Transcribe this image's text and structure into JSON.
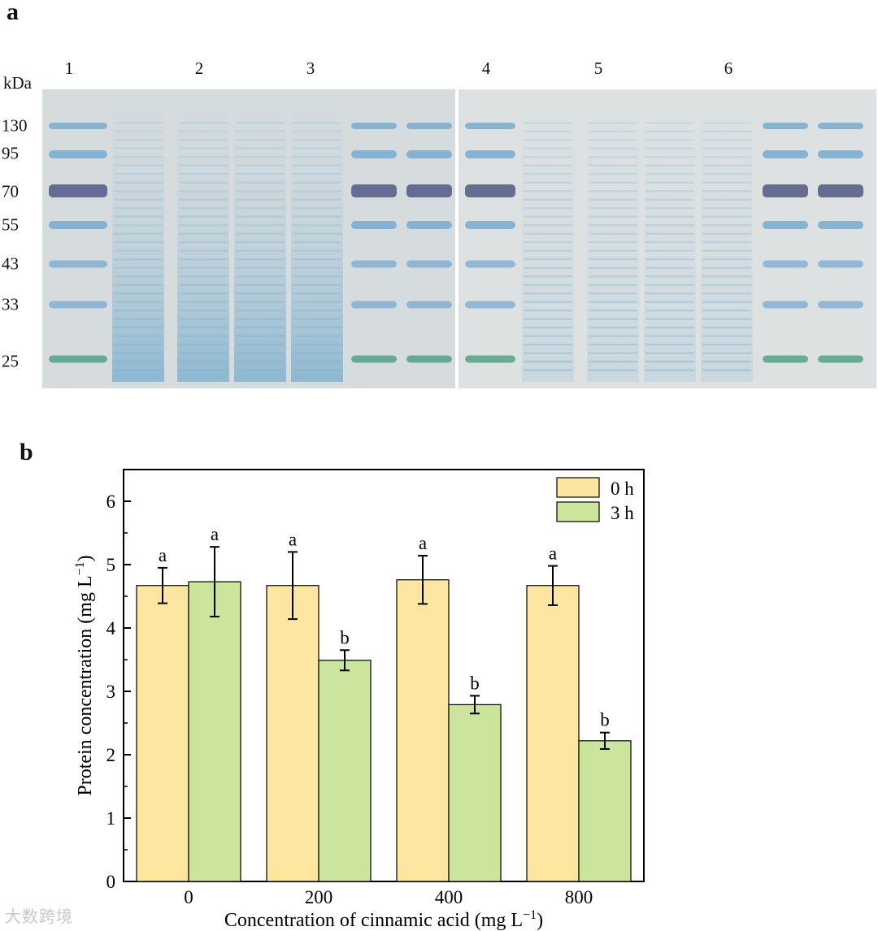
{
  "panel_a": {
    "label": "a",
    "kda_label": "kDa",
    "lanes": [
      "1",
      "2",
      "3",
      "4",
      "5",
      "6"
    ],
    "markers": [
      "130",
      "95",
      "70",
      "55",
      "43",
      "33",
      "25"
    ]
  },
  "panel_b": {
    "label": "b"
  },
  "watermark": "大数跨境",
  "chart_data": {
    "type": "bar",
    "xlabel": "Concentration of cinnamic acid (mg L",
    "xlabel_sup": "−1",
    "xlabel_end": ")",
    "ylabel": "Protein concentration (mg L",
    "ylabel_sup": "−1",
    "ylabel_end": ")",
    "categories": [
      "0",
      "200",
      "400",
      "800"
    ],
    "ylim": [
      0,
      6.5
    ],
    "yticks": [
      "0",
      "1",
      "2",
      "3",
      "4",
      "5",
      "6"
    ],
    "legend_position": "top-right",
    "series": [
      {
        "name": "0 h",
        "color": "#fce6a0",
        "values": [
          4.67,
          4.67,
          4.76,
          4.67
        ],
        "errors": [
          0.28,
          0.53,
          0.38,
          0.31
        ],
        "letters": [
          "a",
          "a",
          "a",
          "a"
        ]
      },
      {
        "name": "3 h",
        "color": "#cbe59c",
        "values": [
          4.73,
          3.49,
          2.79,
          2.22
        ],
        "errors": [
          0.55,
          0.16,
          0.14,
          0.13
        ],
        "letters": [
          "a",
          "b",
          "b",
          "b"
        ]
      }
    ]
  }
}
